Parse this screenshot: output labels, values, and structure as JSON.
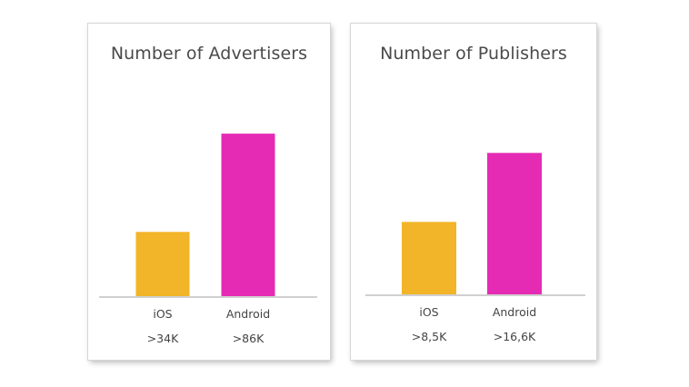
{
  "chart_data": [
    {
      "type": "bar",
      "title": "Number of Advertisers",
      "categories": [
        "iOS",
        "Android"
      ],
      "value_labels": [
        ">34K",
        ">86K"
      ],
      "values": [
        34,
        86
      ],
      "ylim": [
        0,
        100
      ],
      "colors": [
        "#f2b428",
        "#e52bb4"
      ],
      "grid": false,
      "legend": "none"
    },
    {
      "type": "bar",
      "title": "Number of Publishers",
      "categories": [
        "iOS",
        "Android"
      ],
      "value_labels": [
        ">8,5K",
        ">16,6K"
      ],
      "values": [
        8.5,
        16.6
      ],
      "ylim": [
        0,
        19.3
      ],
      "colors": [
        "#f2b428",
        "#e52bb4"
      ],
      "grid": false,
      "legend": "none"
    }
  ]
}
